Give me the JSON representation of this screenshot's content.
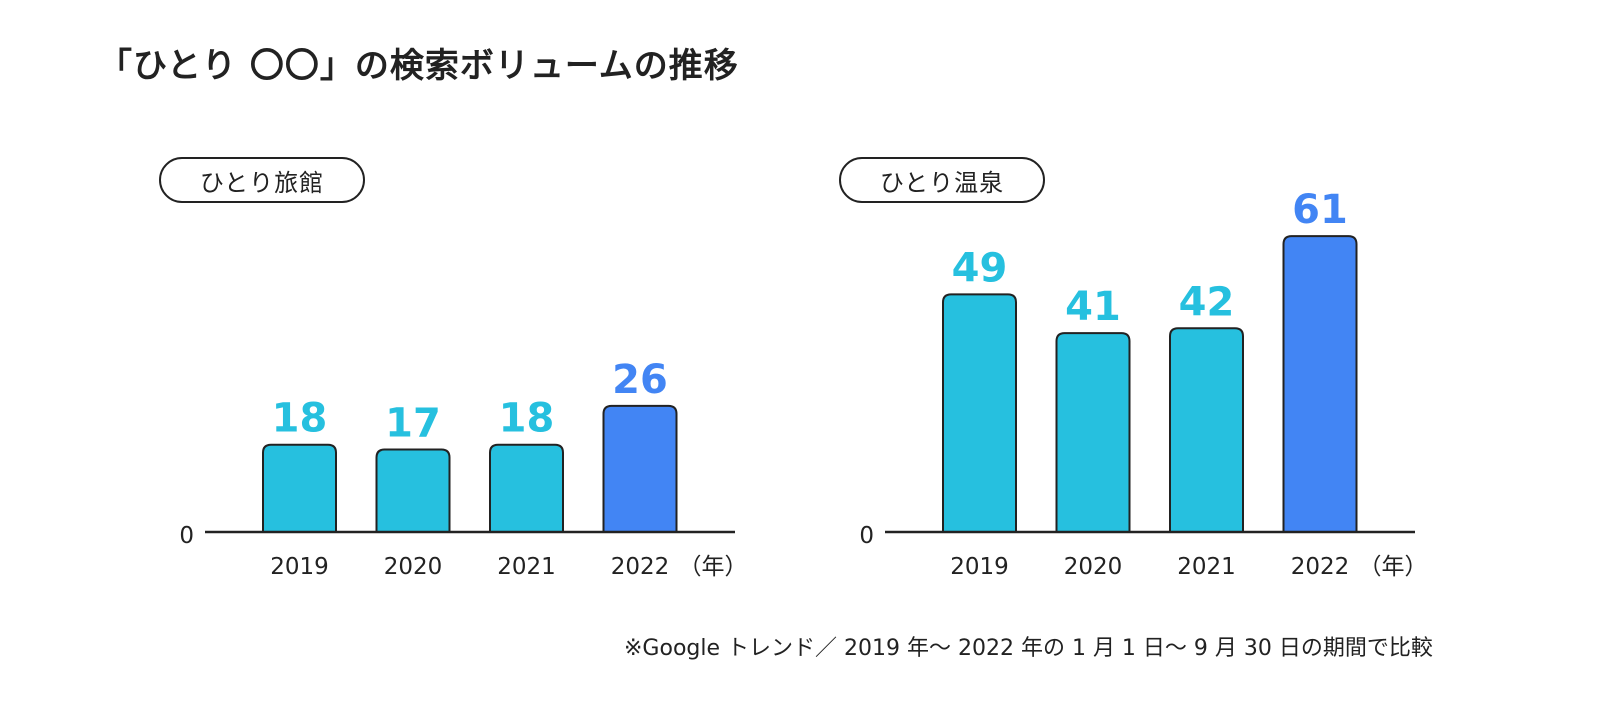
{
  "title": "「ひとり 〇〇」の検索ボリュームの推移",
  "colors": {
    "bar": "#26C0DF",
    "bar_highlight": "#4285F4",
    "label": "#26C0DF",
    "label_highlight": "#4285F4",
    "axis": "#222222"
  },
  "chart_data": [
    {
      "type": "bar",
      "title": "ひとり旅館",
      "categories": [
        "2019",
        "2020",
        "2021",
        "2022"
      ],
      "values": [
        18,
        17,
        18,
        26
      ],
      "highlight_index": 3,
      "y_zero_label": "0",
      "x_unit_label": "（年）",
      "ylim": [
        0,
        65
      ]
    },
    {
      "type": "bar",
      "title": "ひとり温泉",
      "categories": [
        "2019",
        "2020",
        "2021",
        "2022"
      ],
      "values": [
        49,
        41,
        42,
        61
      ],
      "highlight_index": 3,
      "y_zero_label": "0",
      "x_unit_label": "（年）",
      "ylim": [
        0,
        65
      ]
    }
  ],
  "footnote": "※Google トレンド／ 2019 年〜 2022 年の 1 月 1 日〜 9 月 30 日の期間で比較"
}
